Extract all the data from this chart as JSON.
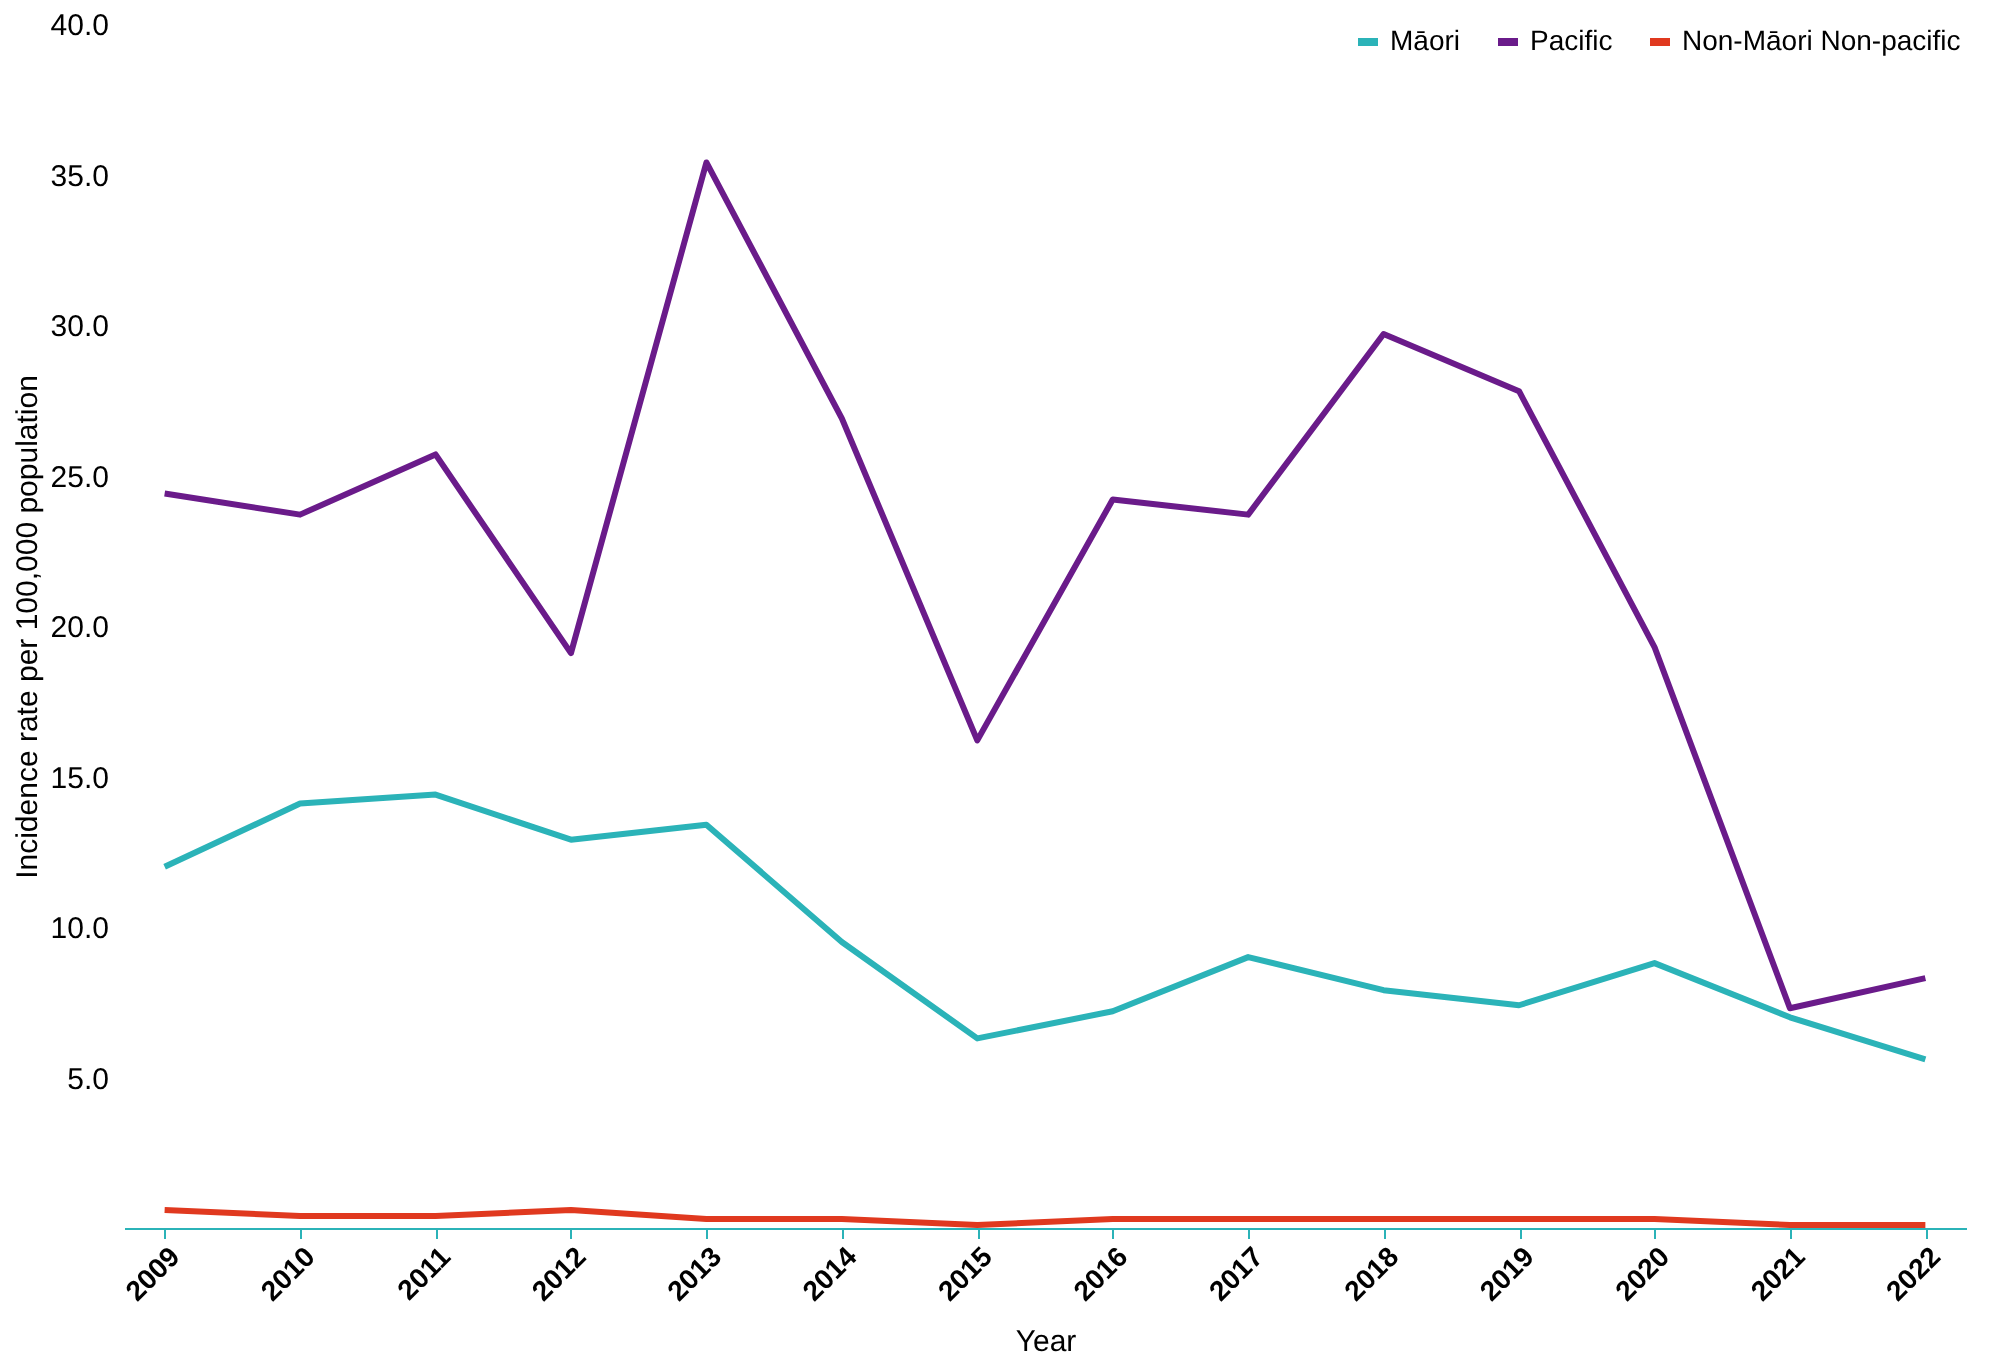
{
  "chart_data": {
    "type": "line",
    "xlabel": "Year",
    "ylabel": "Incidence rate per 100,000 population",
    "categories": [
      "2009",
      "2010",
      "2011",
      "2012",
      "2013",
      "2014",
      "2015",
      "2016",
      "2017",
      "2018",
      "2019",
      "2020",
      "2021",
      "2022"
    ],
    "series": [
      {
        "name": "Māori",
        "color": "#2bb3b8",
        "values": [
          12.0,
          14.1,
          14.4,
          12.9,
          13.4,
          9.5,
          6.3,
          7.2,
          9.0,
          7.9,
          7.4,
          8.8,
          7.0,
          5.6
        ]
      },
      {
        "name": "Pacific",
        "color": "#6a1b8a",
        "values": [
          24.4,
          23.7,
          25.7,
          19.1,
          35.4,
          26.9,
          16.2,
          24.2,
          23.7,
          29.7,
          27.8,
          19.3,
          7.3,
          8.3
        ]
      },
      {
        "name": "Non-Māori Non-pacific",
        "color": "#e0391f",
        "values": [
          0.6,
          0.4,
          0.4,
          0.6,
          0.3,
          0.3,
          0.1,
          0.3,
          0.3,
          0.3,
          0.3,
          0.3,
          0.1,
          0.1
        ]
      }
    ],
    "ylim": [
      0,
      40
    ],
    "yticks": [
      {
        "value": 5,
        "label": "5.0"
      },
      {
        "value": 10,
        "label": "10.0"
      },
      {
        "value": 15,
        "label": "15.0"
      },
      {
        "value": 20,
        "label": "20.0"
      },
      {
        "value": 25,
        "label": "25.0"
      },
      {
        "value": 30,
        "label": "30.0"
      },
      {
        "value": 35,
        "label": "35.0"
      },
      {
        "value": 40,
        "label": "40.0"
      }
    ],
    "grid": false,
    "legend": "top right",
    "marker": "none",
    "line_style": "solid"
  }
}
